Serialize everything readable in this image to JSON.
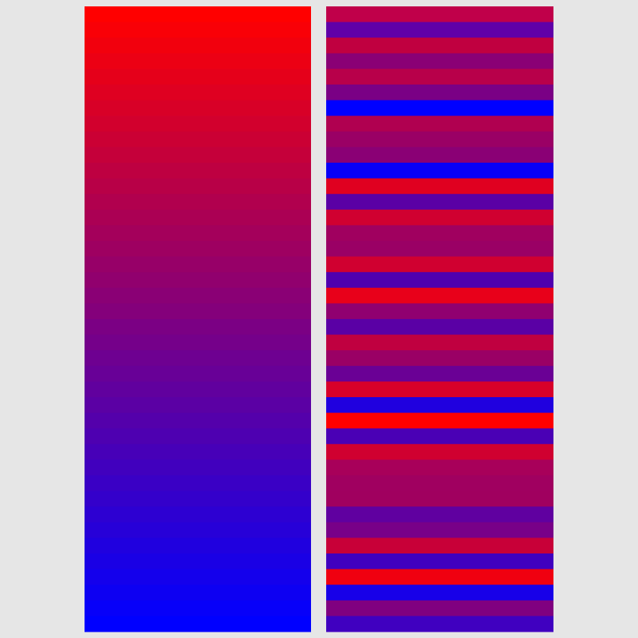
{
  "columns": [
    {
      "colors": [
        "#ff0000",
        "#f90007",
        "#f2000d",
        "#ec0014",
        "#e5001a",
        "#df0021",
        "#d80027",
        "#d2002d",
        "#cb0034",
        "#c5003a",
        "#be0041",
        "#b80047",
        "#b1004e",
        "#ab0054",
        "#a4005b",
        "#9e0061",
        "#970068",
        "#91006e",
        "#8a0075",
        "#84007b",
        "#7b0084",
        "#75008a",
        "#6e0091",
        "#680097",
        "#61009e",
        "#5b00a4",
        "#5400ab",
        "#4e00b1",
        "#4700b8",
        "#4100be",
        "#3a00c5",
        "#3400cb",
        "#2d00d2",
        "#2700d8",
        "#2000df",
        "#1a00e5",
        "#1400ec",
        "#0d00f2",
        "#0700f9",
        "#0000ff"
      ]
    },
    {
      "colors": [
        "#c0004a",
        "#6000a8",
        "#c00040",
        "#8a0075",
        "#b8004a",
        "#7a0085",
        "#0000ff",
        "#b00050",
        "#9a0065",
        "#8a0075",
        "#0800f7",
        "#e00020",
        "#5a00a5",
        "#d00030",
        "#a0005f",
        "#9a0065",
        "#d00030",
        "#5000af",
        "#e8001a",
        "#900070",
        "#5a00a5",
        "#c00040",
        "#9a0065",
        "#6a0095",
        "#d8002a",
        "#2000df",
        "#ff0000",
        "#4a00b5",
        "#d00030",
        "#a8005a",
        "#a00060",
        "#a0005f",
        "#6000a0",
        "#780088",
        "#c80038",
        "#4000bf",
        "#f00010",
        "#1800e8",
        "#800080",
        "#4000c0"
      ]
    }
  ]
}
